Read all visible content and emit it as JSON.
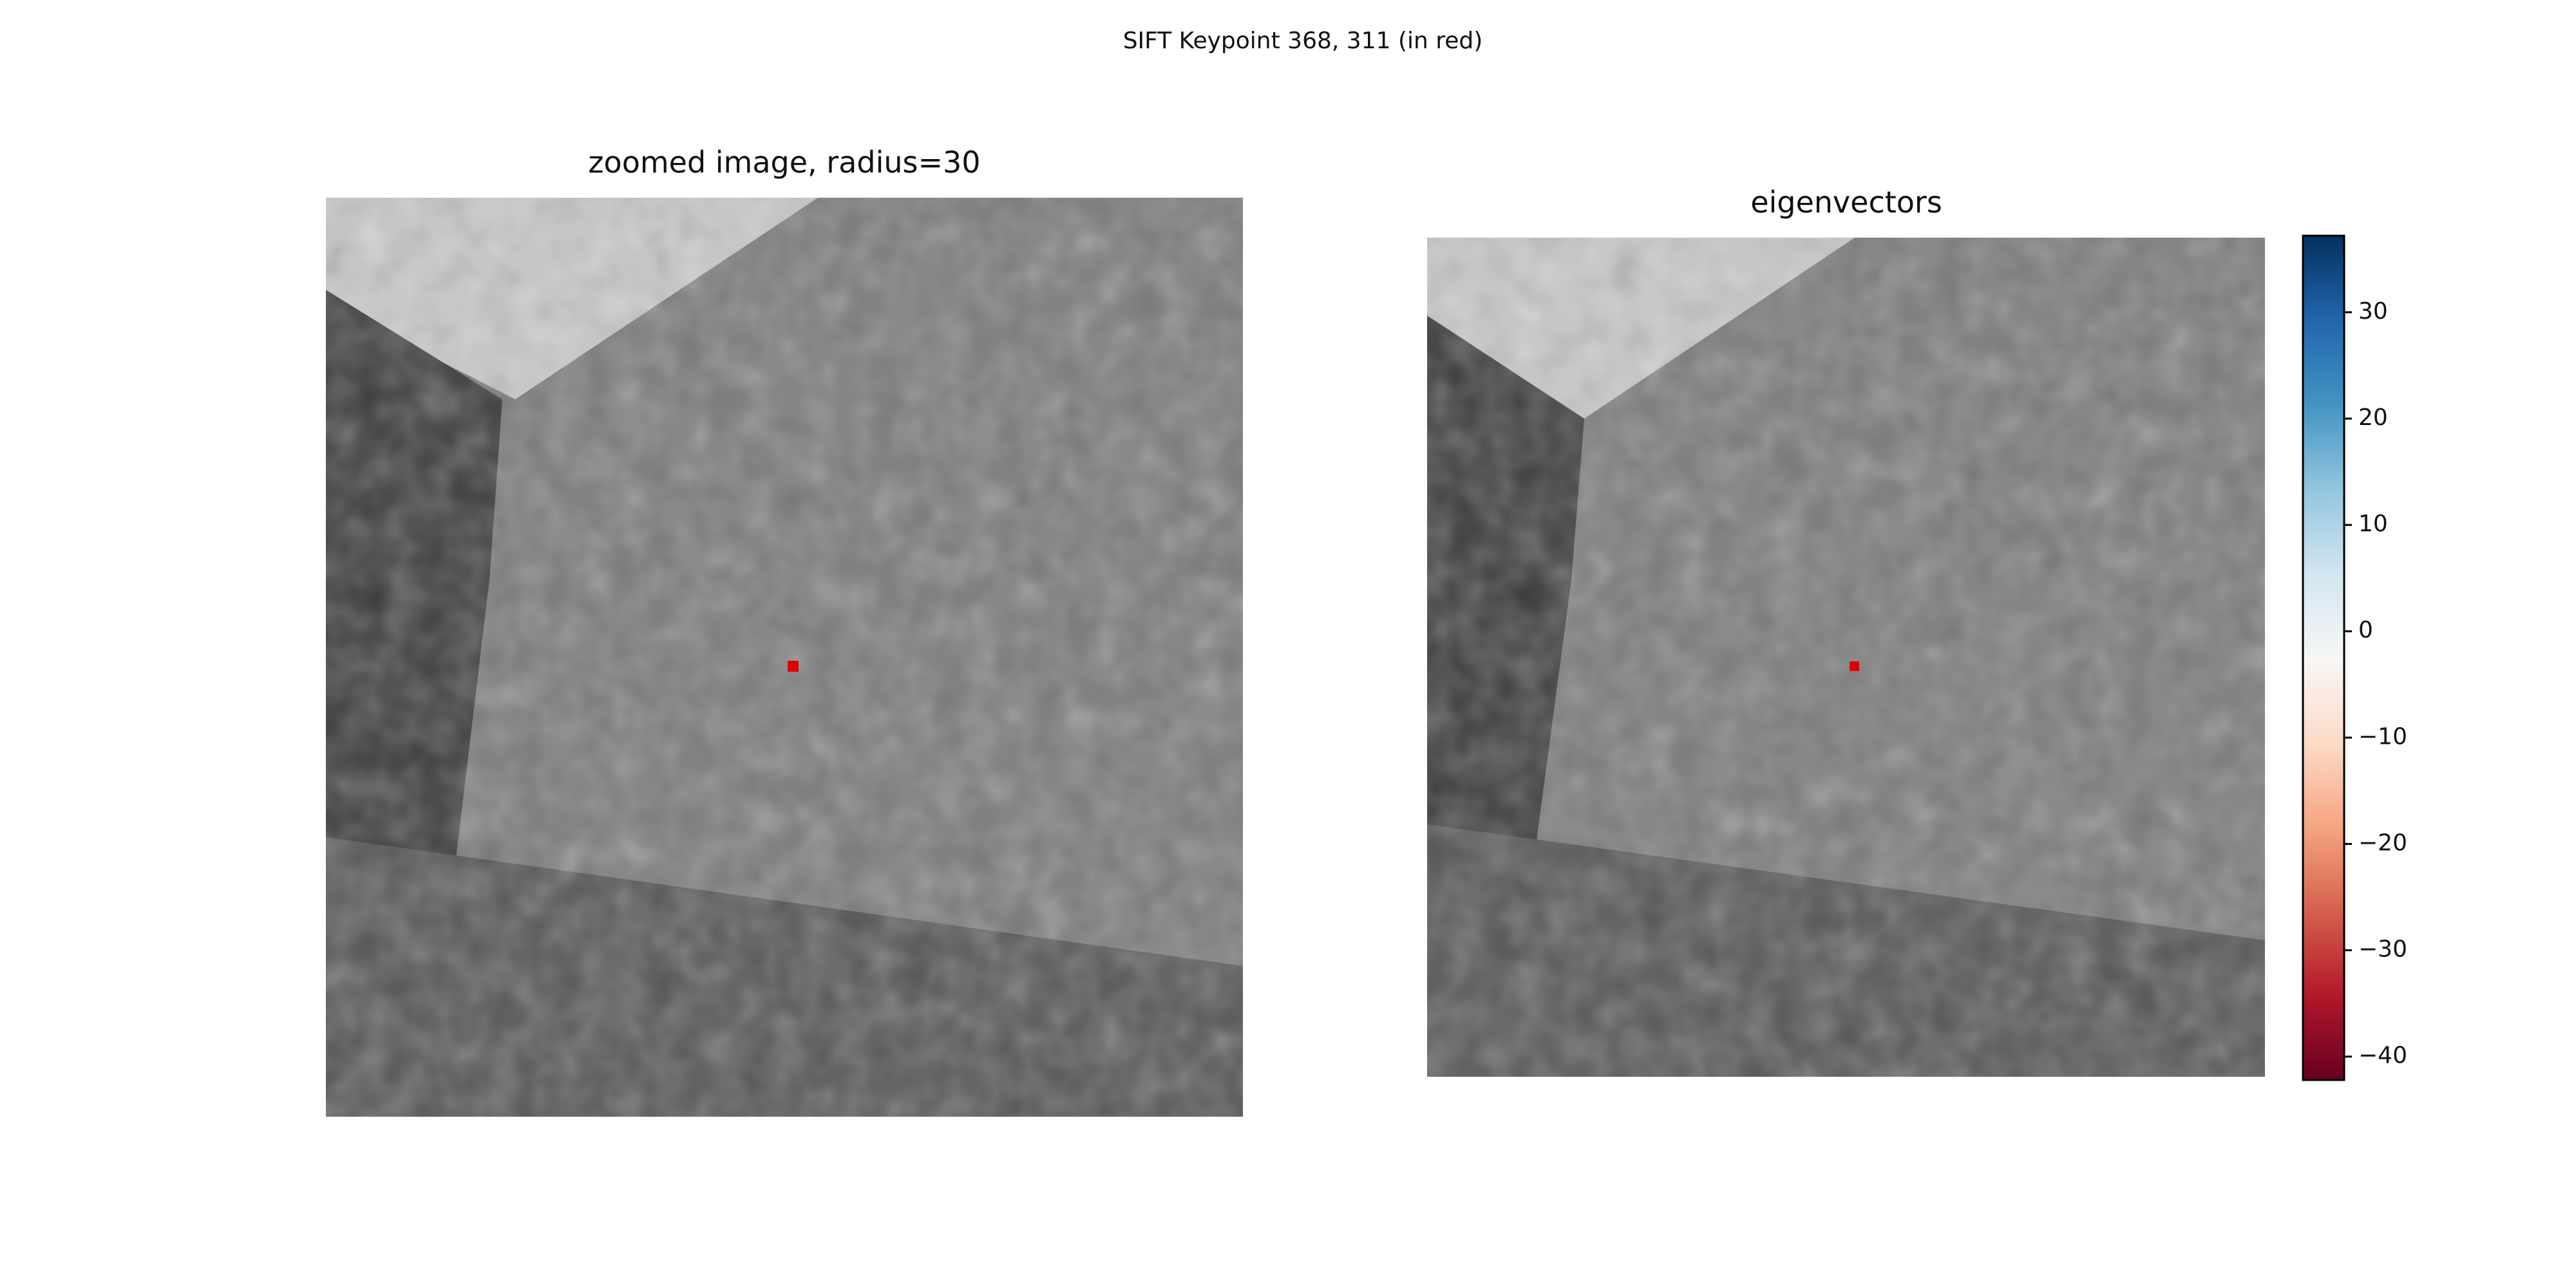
{
  "title": "SIFT Keypoint 368, 311 (in red)",
  "chart_data": [
    {
      "type": "image",
      "title": "zoomed image, radius=30"
    },
    {
      "type": "quiver",
      "title": "eigenvectors",
      "colorbar": {
        "colormap": "RdBu",
        "clim": [
          -42.2,
          37.2
        ],
        "ticks": [
          30,
          20,
          10,
          0,
          {
            "value": -10,
            "label": "−10"
          },
          {
            "value": -20,
            "label": "−20"
          },
          {
            "value": -30,
            "label": "−30"
          },
          {
            "value": -40,
            "label": "−40"
          }
        ]
      }
    }
  ]
}
